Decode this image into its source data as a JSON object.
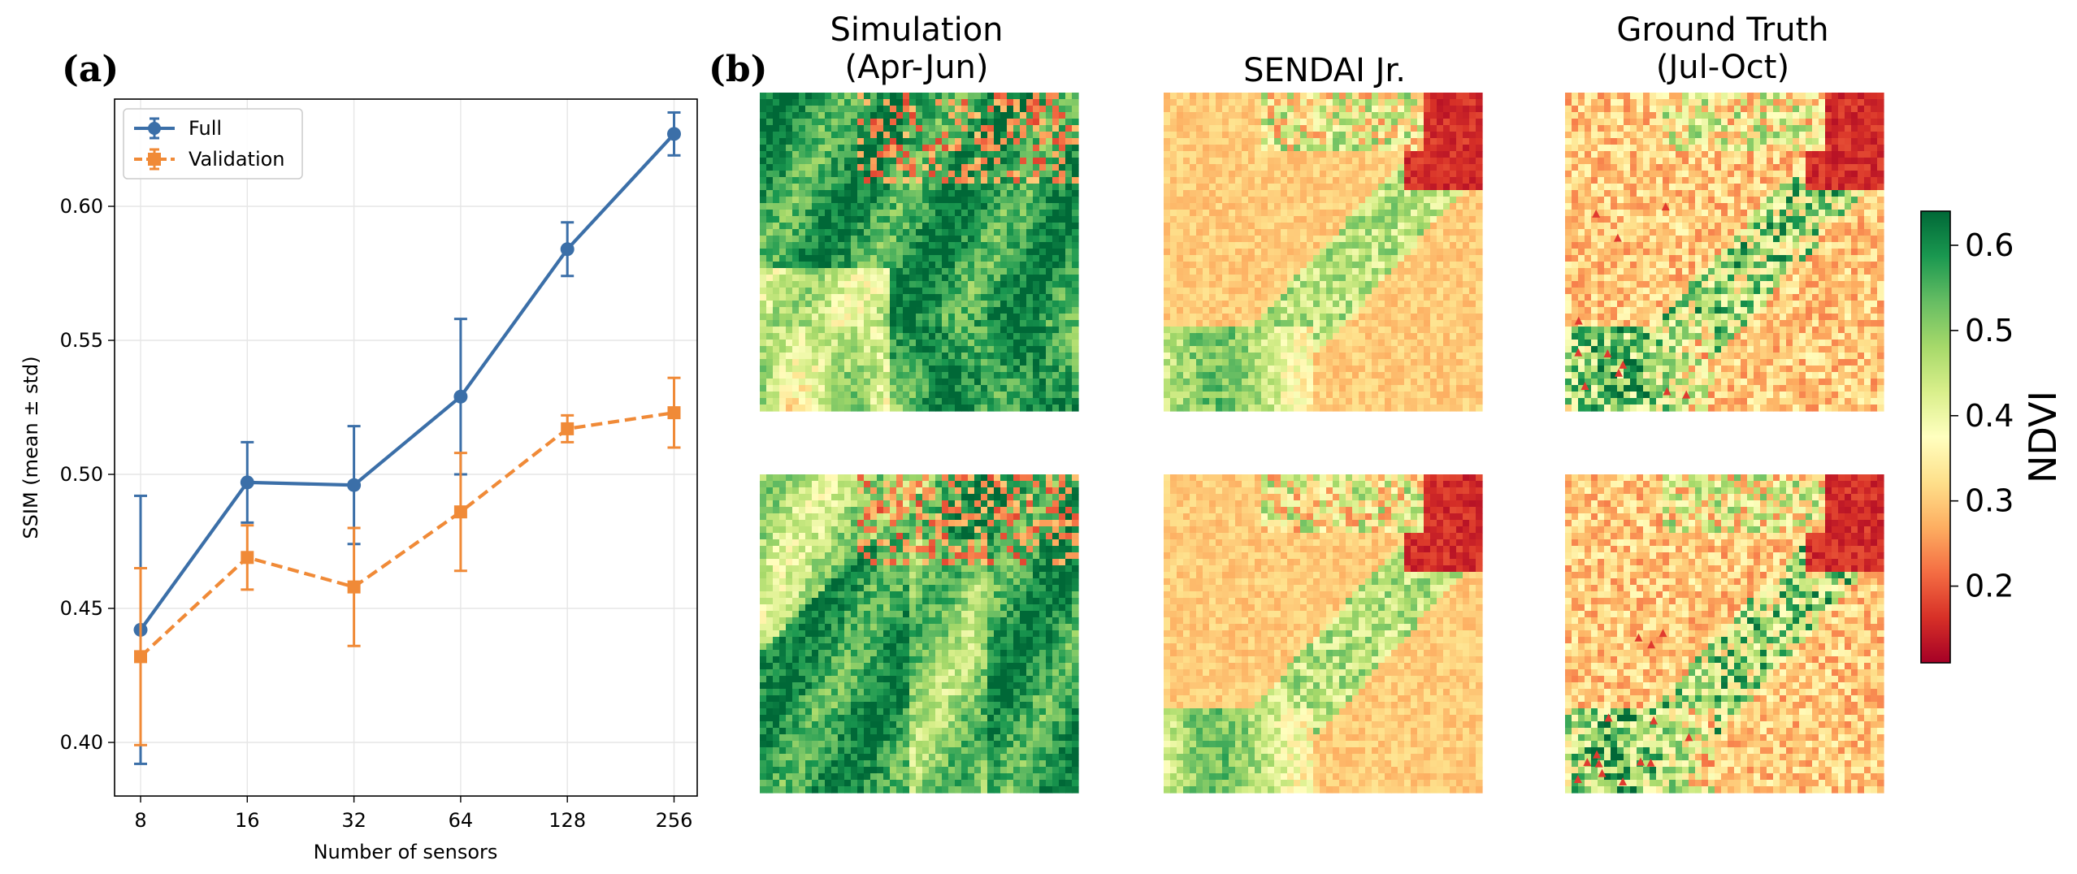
{
  "panels": {
    "a_label": "(a)",
    "b_label": "(b)"
  },
  "chart_data": {
    "type": "line",
    "title": "",
    "xlabel": "Number of sensors",
    "ylabel": "SSIM (mean ± std)",
    "categories": [
      "8",
      "16",
      "32",
      "64",
      "128",
      "256"
    ],
    "ylim": [
      0.38,
      0.64
    ],
    "yticks": [
      0.4,
      0.45,
      0.5,
      0.55,
      0.6
    ],
    "ytick_labels": [
      "0.40",
      "0.45",
      "0.50",
      "0.55",
      "0.60"
    ],
    "grid": true,
    "legend_position": "top-left",
    "series": [
      {
        "name": "Full",
        "color": "#3b6fa8",
        "marker": "circle",
        "linestyle": "solid",
        "values": [
          0.442,
          0.497,
          0.496,
          0.529,
          0.584,
          0.627
        ],
        "std": [
          0.05,
          0.015,
          0.022,
          0.029,
          0.01,
          0.008
        ]
      },
      {
        "name": "Validation",
        "color": "#f08a37",
        "marker": "square",
        "linestyle": "dashed",
        "values": [
          0.432,
          0.469,
          0.458,
          0.486,
          0.517,
          0.523
        ],
        "std": [
          0.033,
          0.012,
          0.022,
          0.022,
          0.005,
          0.013
        ]
      }
    ]
  },
  "maps": {
    "titles": [
      {
        "line1": "Simulation",
        "line2": "(Apr-Jun)"
      },
      {
        "line1": "SENDAI Jr.",
        "line2": ""
      },
      {
        "line1": "Ground Truth",
        "line2": "(Jul-Oct)"
      }
    ],
    "colorbar": {
      "label": "NDVI",
      "range": [
        0.11,
        0.64
      ],
      "ticks": [
        0.2,
        0.3,
        0.4,
        0.5,
        0.6
      ],
      "tick_labels": [
        "0.2",
        "0.3",
        "0.4",
        "0.5",
        "0.6"
      ],
      "colors": [
        "#a50026",
        "#d73027",
        "#f46d43",
        "#fdae61",
        "#fee08b",
        "#ffffbf",
        "#d9ef8b",
        "#a6d96a",
        "#66bd63",
        "#1a9850",
        "#006837"
      ]
    }
  }
}
